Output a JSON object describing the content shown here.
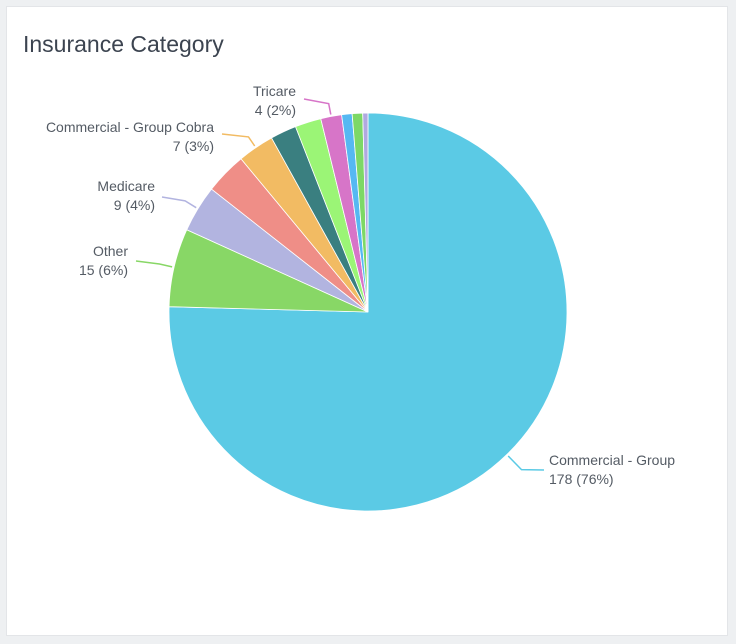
{
  "panel": {
    "title": "Insurance Category"
  },
  "chart_data": {
    "type": "pie",
    "title": "Insurance Category",
    "start_angle_deg": 0,
    "direction": "clockwise",
    "slices": [
      {
        "name": "Commercial - Group",
        "value": 178,
        "percent": "76%",
        "display": "178 (76%)",
        "color": "#5bcae5",
        "labeled": true
      },
      {
        "name": "Other",
        "value": 15,
        "percent": "6%",
        "display": "15 (6%)",
        "color": "#88d766",
        "labeled": true
      },
      {
        "name": "Medicare",
        "value": 9,
        "percent": "4%",
        "display": "9 (4%)",
        "color": "#b2b4e0",
        "labeled": true
      },
      {
        "name": "",
        "value": 8,
        "color": "#ef8e87",
        "labeled": false
      },
      {
        "name": "Commercial - Group Cobra",
        "value": 7,
        "percent": "3%",
        "display": "7 (3%)",
        "color": "#f2bb63",
        "labeled": true
      },
      {
        "name": "",
        "value": 5,
        "color": "#3a7f80",
        "labeled": false
      },
      {
        "name": "",
        "value": 5,
        "color": "#9bf576",
        "labeled": false
      },
      {
        "name": "Tricare",
        "value": 4,
        "percent": "2%",
        "display": "4 (2%)",
        "color": "#d775c8",
        "labeled": true
      },
      {
        "name": "",
        "value": 2,
        "color": "#56b8f2",
        "labeled": false
      },
      {
        "name": "",
        "value": 2,
        "color": "#7dd866",
        "labeled": false
      },
      {
        "name": "",
        "value": 1,
        "color": "#b0a9e0",
        "labeled": false
      }
    ]
  }
}
